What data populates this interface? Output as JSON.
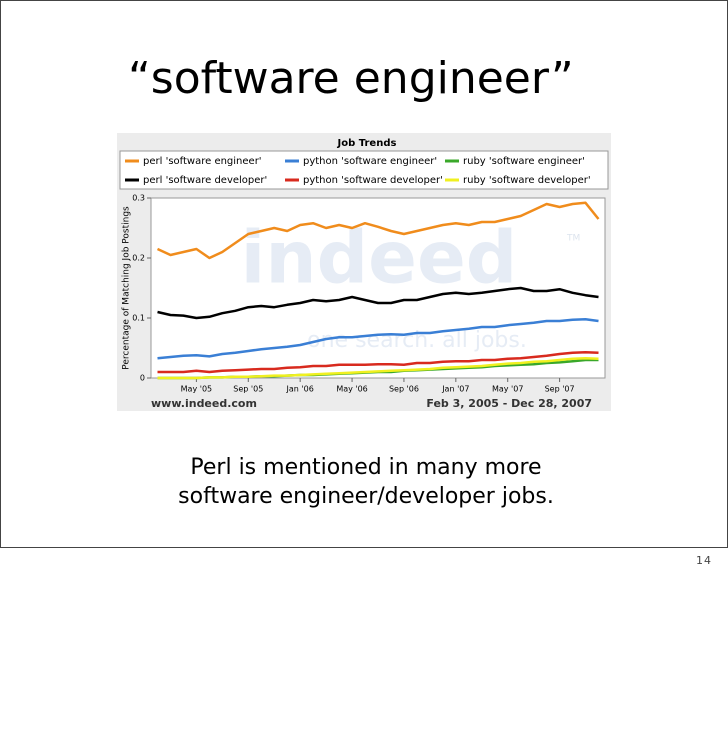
{
  "slide": {
    "title": "“software engineer”",
    "caption": [
      "Perl is mentioned in many more",
      "software engineer/developer jobs."
    ],
    "page_number": "14"
  },
  "chart_data": {
    "type": "line",
    "title": "Job Trends",
    "y_label": "Percentage of Matching Job Postings",
    "watermark": [
      "indeed",
      "TM",
      "one search. all jobs."
    ],
    "source": "www.indeed.com",
    "date_range": "Feb 3, 2005 - Dec 28, 2007",
    "categories": [
      null,
      null,
      null,
      "May '05",
      null,
      null,
      null,
      "Sep '05",
      null,
      null,
      null,
      "Jan '06",
      null,
      null,
      null,
      "May '06",
      null,
      null,
      null,
      "Sep '06",
      null,
      null,
      null,
      "Jan '07",
      null,
      null,
      null,
      "May '07",
      null,
      null,
      null,
      "Sep '07",
      null,
      null,
      null
    ],
    "ylim": [
      0,
      0.3
    ],
    "yticks": [
      0,
      0.1,
      0.2,
      0.3
    ],
    "series": [
      {
        "name": "perl 'software engineer'",
        "color": "#f08c1c",
        "values": [
          0.215,
          0.205,
          0.21,
          0.215,
          0.2,
          0.21,
          0.225,
          0.24,
          0.245,
          0.25,
          0.245,
          0.255,
          0.258,
          0.25,
          0.255,
          0.25,
          0.258,
          0.252,
          0.245,
          0.24,
          0.245,
          0.25,
          0.255,
          0.258,
          0.255,
          0.26,
          0.26,
          0.265,
          0.27,
          0.28,
          0.29,
          0.285,
          0.29,
          0.292,
          0.265
        ]
      },
      {
        "name": "python 'software engineer'",
        "color": "#3a7fd5",
        "values": [
          0.033,
          0.035,
          0.037,
          0.038,
          0.036,
          0.04,
          0.042,
          0.045,
          0.048,
          0.05,
          0.052,
          0.055,
          0.06,
          0.065,
          0.068,
          0.068,
          0.07,
          0.072,
          0.073,
          0.072,
          0.075,
          0.075,
          0.078,
          0.08,
          0.082,
          0.085,
          0.085,
          0.088,
          0.09,
          0.092,
          0.095,
          0.095,
          0.097,
          0.098,
          0.095
        ]
      },
      {
        "name": "ruby 'software engineer'",
        "color": "#3aa82a",
        "values": [
          0,
          0,
          0,
          0,
          0.001,
          0.001,
          0.002,
          0.002,
          0.003,
          0.003,
          0.004,
          0.005,
          0.005,
          0.006,
          0.007,
          0.008,
          0.009,
          0.01,
          0.01,
          0.012,
          0.013,
          0.014,
          0.015,
          0.016,
          0.017,
          0.018,
          0.02,
          0.021,
          0.022,
          0.023,
          0.025,
          0.026,
          0.028,
          0.03,
          0.03
        ]
      },
      {
        "name": "perl 'software developer'",
        "color": "#000000",
        "values": [
          0.11,
          0.105,
          0.104,
          0.1,
          0.102,
          0.108,
          0.112,
          0.118,
          0.12,
          0.118,
          0.122,
          0.125,
          0.13,
          0.128,
          0.13,
          0.135,
          0.13,
          0.125,
          0.125,
          0.13,
          0.13,
          0.135,
          0.14,
          0.142,
          0.14,
          0.142,
          0.145,
          0.148,
          0.15,
          0.145,
          0.145,
          0.148,
          0.142,
          0.138,
          0.135
        ]
      },
      {
        "name": "python 'software developer'",
        "color": "#d82a1e",
        "values": [
          0.01,
          0.01,
          0.01,
          0.012,
          0.01,
          0.012,
          0.013,
          0.014,
          0.015,
          0.015,
          0.017,
          0.018,
          0.02,
          0.02,
          0.022,
          0.022,
          0.022,
          0.023,
          0.023,
          0.022,
          0.025,
          0.025,
          0.027,
          0.028,
          0.028,
          0.03,
          0.03,
          0.032,
          0.033,
          0.035,
          0.037,
          0.04,
          0.042,
          0.043,
          0.042
        ]
      },
      {
        "name": "ruby 'software developer'",
        "color": "#f0f020",
        "values": [
          0,
          0,
          0,
          0,
          0.001,
          0.001,
          0.002,
          0.002,
          0.003,
          0.004,
          0.004,
          0.005,
          0.006,
          0.007,
          0.008,
          0.009,
          0.01,
          0.011,
          0.012,
          0.013,
          0.014,
          0.015,
          0.017,
          0.018,
          0.019,
          0.02,
          0.022,
          0.024,
          0.025,
          0.027,
          0.028,
          0.03,
          0.032,
          0.033,
          0.032
        ]
      }
    ]
  }
}
